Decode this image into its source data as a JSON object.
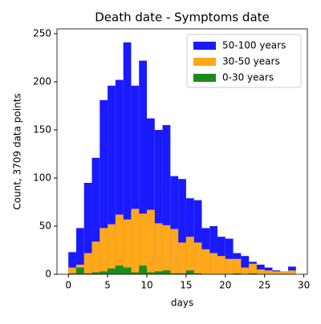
{
  "chart_data": {
    "type": "histogram",
    "title": "Death date - Symptoms date",
    "xlabel": "days",
    "ylabel": "Count, 3709 data points",
    "bins": [
      0,
      1,
      2,
      3,
      4,
      5,
      6,
      7,
      8,
      9,
      10,
      11,
      12,
      13,
      14,
      15,
      16,
      17,
      18,
      19,
      20,
      21,
      22,
      23,
      24,
      25,
      26,
      27,
      28,
      29
    ],
    "series": [
      {
        "name": "50-100 years",
        "color": "#1a1aff",
        "values": [
          23,
          48,
          95,
          121,
          181,
          196,
          202,
          241,
          196,
          222,
          162,
          150,
          155,
          102,
          99,
          79,
          77,
          48,
          50,
          39,
          37,
          22,
          19,
          13,
          10,
          7,
          4,
          3,
          8
        ]
      },
      {
        "name": "30-50 years",
        "color": "#ffa81a",
        "values": [
          7,
          10,
          22,
          34,
          48,
          52,
          62,
          57,
          68,
          63,
          67,
          53,
          51,
          47,
          33,
          39,
          33,
          26,
          22,
          19,
          16,
          16,
          7,
          11,
          5,
          4,
          3,
          3,
          4
        ]
      },
      {
        "name": "0-30 years",
        "color": "#1a8c1a",
        "values": [
          1,
          7,
          1,
          2,
          3,
          6,
          9,
          7,
          2,
          9,
          2,
          3,
          4,
          1,
          1,
          4,
          1,
          0,
          0,
          0,
          0,
          1,
          0,
          1,
          0,
          0,
          0,
          0,
          0
        ]
      }
    ],
    "xlim": [
      -1.45,
      30.45
    ],
    "xticks": [
      0,
      5,
      10,
      15,
      20,
      25,
      30
    ],
    "ylim": [
      0,
      255
    ],
    "yticks": [
      0,
      50,
      100,
      150,
      200,
      250
    ],
    "legend": "upper right"
  }
}
